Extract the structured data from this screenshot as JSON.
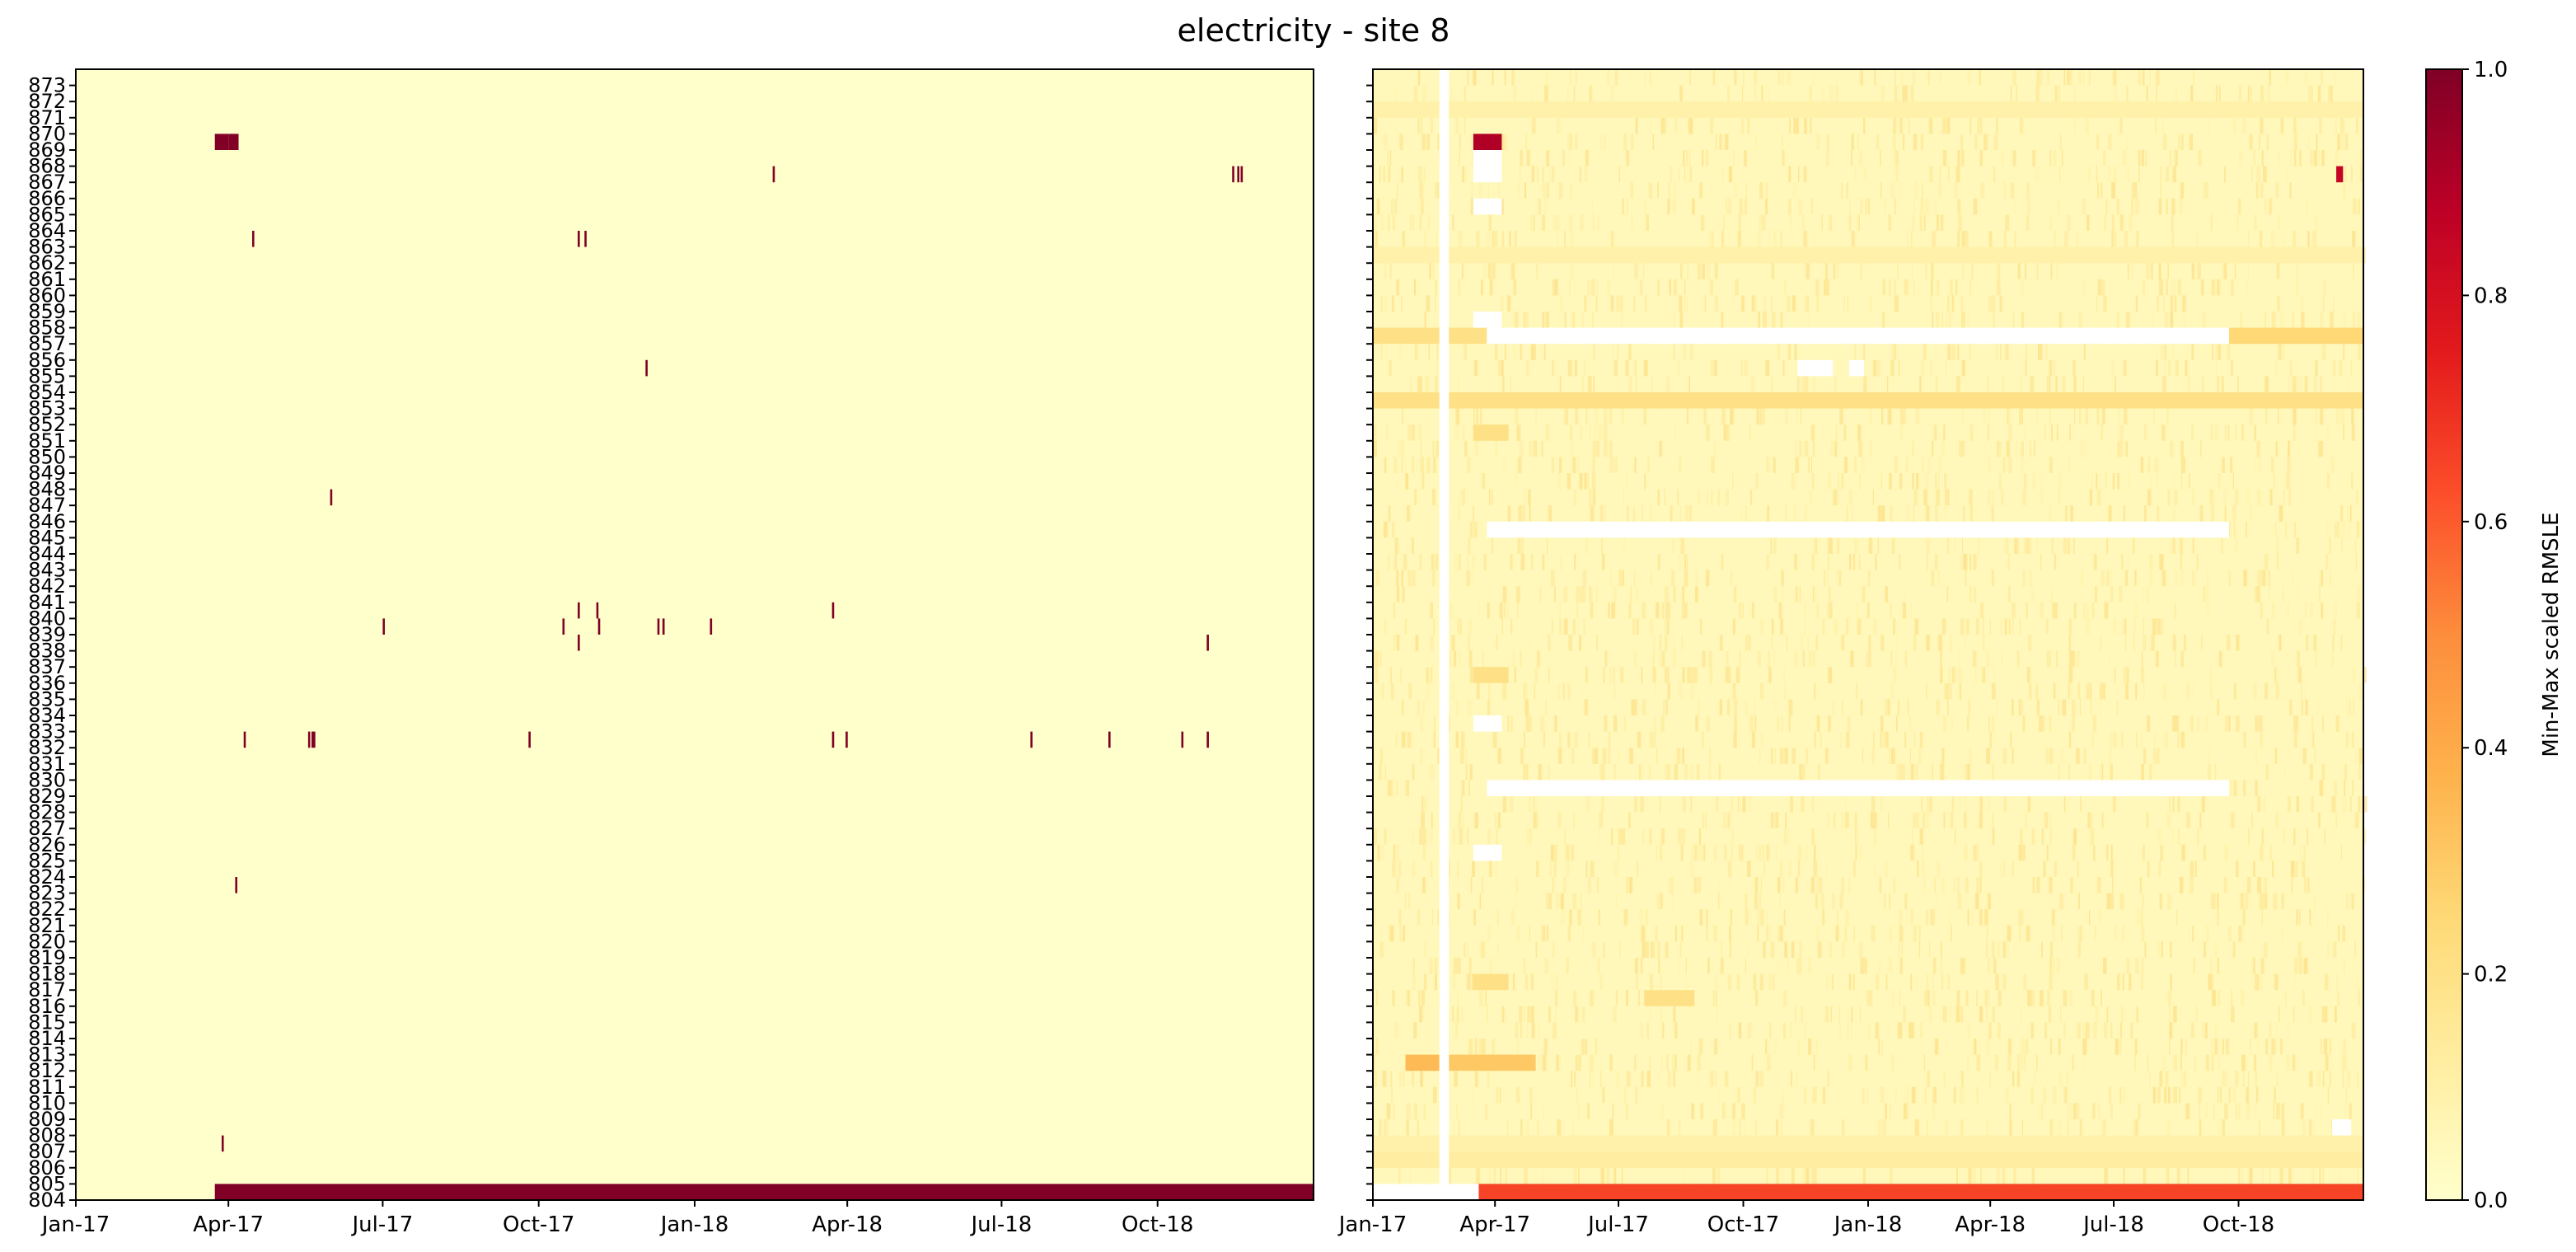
{
  "figure": {
    "title": "electricity - site 8"
  },
  "chart_data": [
    {
      "type": "heatmap",
      "panel": "left",
      "description_of_values": "binary missing/anomaly flag per building and date",
      "x_tick_labels": [
        "Jan-17",
        "Apr-17",
        "Jul-17",
        "Oct-17",
        "Jan-18",
        "Apr-18",
        "Jul-18",
        "Oct-18"
      ],
      "x_tick_dates": [
        "2017-01-01",
        "2017-04-01",
        "2017-07-01",
        "2017-10-01",
        "2018-01-01",
        "2018-04-01",
        "2018-07-01",
        "2018-10-01"
      ],
      "x_range": [
        "2017-01-01",
        "2018-12-31"
      ],
      "y_range": [
        804,
        873
      ],
      "y_tick_labels": [
        "804",
        "805",
        "806",
        "807",
        "808",
        "809",
        "810",
        "811",
        "812",
        "813",
        "814",
        "815",
        "816",
        "817",
        "818",
        "819",
        "820",
        "821",
        "822",
        "823",
        "824",
        "825",
        "826",
        "827",
        "828",
        "829",
        "830",
        "831",
        "832",
        "833",
        "834",
        "835",
        "836",
        "837",
        "838",
        "839",
        "840",
        "841",
        "842",
        "843",
        "844",
        "845",
        "846",
        "847",
        "848",
        "849",
        "850",
        "851",
        "852",
        "853",
        "854",
        "855",
        "856",
        "857",
        "858",
        "859",
        "860",
        "861",
        "862",
        "863",
        "864",
        "865",
        "866",
        "867",
        "868",
        "869",
        "870",
        "871",
        "872",
        "873"
      ],
      "background_value": 0.0,
      "cells": [
        {
          "building": 804,
          "start": "2017-03-24",
          "end": "2018-12-31",
          "value": 1.0
        },
        {
          "building": 807,
          "date": "2017-03-28",
          "value": 1.0
        },
        {
          "building": 823,
          "date": "2017-04-05",
          "value": 1.0
        },
        {
          "building": 832,
          "date": "2017-04-10",
          "value": 1.0
        },
        {
          "building": 832,
          "date": "2017-05-18",
          "value": 1.0
        },
        {
          "building": 832,
          "date": "2017-05-20",
          "value": 1.0
        },
        {
          "building": 832,
          "date": "2017-05-21",
          "value": 1.0
        },
        {
          "building": 832,
          "date": "2017-09-25",
          "value": 1.0
        },
        {
          "building": 832,
          "date": "2018-03-23",
          "value": 1.0
        },
        {
          "building": 832,
          "date": "2018-03-31",
          "value": 1.0
        },
        {
          "building": 832,
          "date": "2018-07-18",
          "value": 1.0
        },
        {
          "building": 832,
          "date": "2018-09-02",
          "value": 1.0
        },
        {
          "building": 832,
          "date": "2018-10-15",
          "value": 1.0
        },
        {
          "building": 832,
          "date": "2018-10-30",
          "value": 1.0
        },
        {
          "building": 838,
          "date": "2017-10-24",
          "value": 1.0
        },
        {
          "building": 838,
          "date": "2018-10-30",
          "value": 1.0
        },
        {
          "building": 839,
          "date": "2017-07-01",
          "value": 1.0
        },
        {
          "building": 839,
          "date": "2017-10-15",
          "value": 1.0
        },
        {
          "building": 839,
          "date": "2017-11-05",
          "value": 1.0
        },
        {
          "building": 839,
          "date": "2017-12-10",
          "value": 1.0
        },
        {
          "building": 839,
          "date": "2017-12-13",
          "value": 1.0
        },
        {
          "building": 839,
          "date": "2018-01-10",
          "value": 1.0
        },
        {
          "building": 840,
          "date": "2017-10-24",
          "value": 1.0
        },
        {
          "building": 840,
          "date": "2017-11-04",
          "value": 1.0
        },
        {
          "building": 840,
          "date": "2018-03-23",
          "value": 1.0
        },
        {
          "building": 847,
          "date": "2017-05-31",
          "value": 1.0
        },
        {
          "building": 855,
          "date": "2017-12-03",
          "value": 1.0
        },
        {
          "building": 863,
          "date": "2017-04-15",
          "value": 1.0
        },
        {
          "building": 863,
          "date": "2017-10-24",
          "value": 1.0
        },
        {
          "building": 863,
          "date": "2017-10-28",
          "value": 1.0
        },
        {
          "building": 867,
          "date": "2018-02-16",
          "value": 1.0
        },
        {
          "building": 867,
          "date": "2018-11-14",
          "value": 1.0
        },
        {
          "building": 867,
          "date": "2018-11-17",
          "value": 1.0
        },
        {
          "building": 867,
          "date": "2018-11-19",
          "value": 1.0
        },
        {
          "building": 869,
          "start": "2017-03-24",
          "end": "2017-03-31",
          "value": 1.0
        },
        {
          "building": 869,
          "start": "2017-04-01",
          "end": "2017-04-06",
          "value": 1.0
        }
      ]
    },
    {
      "type": "heatmap",
      "panel": "right",
      "description_of_values": "min-max scaled RMSLE per building and date (mostly low, 0-0.2)",
      "x_tick_labels": [
        "Jan-17",
        "Apr-17",
        "Jul-17",
        "Oct-17",
        "Jan-18",
        "Apr-18",
        "Jul-18",
        "Oct-18"
      ],
      "x_tick_dates": [
        "2017-01-01",
        "2017-04-01",
        "2017-07-01",
        "2017-10-01",
        "2018-01-01",
        "2018-04-01",
        "2018-07-01",
        "2018-10-01"
      ],
      "x_range": [
        "2017-01-01",
        "2018-12-31"
      ],
      "y_range": [
        804,
        873
      ],
      "y_tick_labels_shown": false,
      "background_value": 0.05,
      "missing_cells_white": [
        {
          "all_buildings": true,
          "start": "2017-02-19",
          "end": "2017-02-25"
        },
        {
          "building": 804,
          "start": "2017-01-01",
          "end": "2017-03-19"
        },
        {
          "building": 857,
          "start": "2017-03-26",
          "end": "2018-09-23"
        },
        {
          "building": 845,
          "start": "2017-03-26",
          "end": "2018-09-23"
        },
        {
          "building": 829,
          "start": "2017-03-26",
          "end": "2018-09-23"
        },
        {
          "building": 867,
          "start": "2017-03-16",
          "end": "2017-04-05"
        },
        {
          "building": 868,
          "start": "2017-03-16",
          "end": "2017-04-05"
        },
        {
          "building": 865,
          "start": "2017-03-16",
          "end": "2017-04-05"
        },
        {
          "building": 858,
          "start": "2017-03-16",
          "end": "2017-04-05"
        },
        {
          "building": 833,
          "start": "2017-03-16",
          "end": "2017-04-05"
        },
        {
          "building": 825,
          "start": "2017-03-16",
          "end": "2017-04-05"
        },
        {
          "building": 855,
          "start": "2017-11-10",
          "end": "2017-12-05"
        },
        {
          "building": 855,
          "start": "2017-12-18",
          "end": "2017-12-28"
        },
        {
          "building": 808,
          "start": "2018-12-09",
          "end": "2018-12-22"
        }
      ],
      "highlighted_cells": [
        {
          "building": 804,
          "start": "2017-03-16",
          "end": "2018-12-31",
          "value": 0.65
        },
        {
          "building": 869,
          "start": "2017-03-16",
          "end": "2017-04-05",
          "value": 0.9
        },
        {
          "building": 812,
          "start": "2017-01-25",
          "end": "2017-02-18",
          "value": 0.35
        },
        {
          "building": 812,
          "start": "2017-02-26",
          "end": "2017-04-30",
          "value": 0.3
        },
        {
          "building": 857,
          "start": "2017-01-01",
          "end": "2017-03-25",
          "value": 0.2
        },
        {
          "building": 857,
          "start": "2018-09-24",
          "end": "2018-12-31",
          "value": 0.25
        },
        {
          "building": 853,
          "start": "2017-01-01",
          "end": "2018-12-31",
          "value": 0.2
        },
        {
          "building": 806,
          "start": "2017-01-01",
          "end": "2018-12-31",
          "value": 0.12
        },
        {
          "building": 807,
          "start": "2017-01-01",
          "end": "2018-12-31",
          "value": 0.1
        },
        {
          "building": 862,
          "start": "2017-01-01",
          "end": "2018-12-31",
          "value": 0.1
        },
        {
          "building": 871,
          "start": "2017-01-01",
          "end": "2018-12-31",
          "value": 0.1
        },
        {
          "building": 851,
          "start": "2017-03-16",
          "end": "2017-04-10",
          "value": 0.2
        },
        {
          "building": 836,
          "start": "2017-03-16",
          "end": "2017-04-10",
          "value": 0.2
        },
        {
          "building": 817,
          "start": "2017-03-16",
          "end": "2017-04-10",
          "value": 0.2
        },
        {
          "building": 816,
          "start": "2017-07-20",
          "end": "2017-08-25",
          "value": 0.2
        },
        {
          "building": 867,
          "start": "2018-12-12",
          "end": "2018-12-16",
          "value": 0.85
        }
      ],
      "colorbar": {
        "label": "Min-Max scaled RMSLE",
        "range": [
          0.0,
          1.0
        ],
        "ticks": [
          "0.0",
          "0.2",
          "0.4",
          "0.6",
          "0.8",
          "1.0"
        ],
        "colormap": "YlOrRd"
      }
    }
  ]
}
